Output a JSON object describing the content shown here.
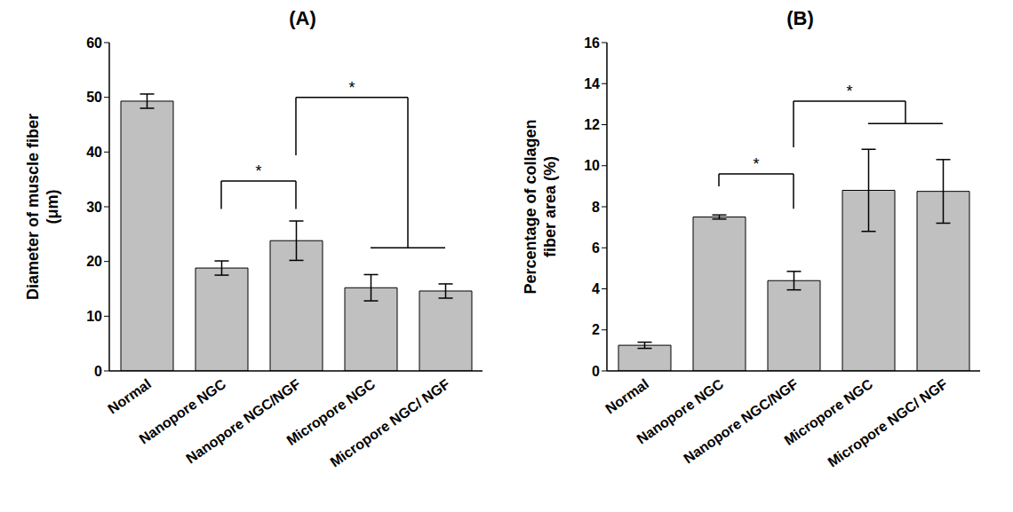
{
  "chart_data": [
    {
      "type": "bar",
      "title": "(A)",
      "y_label": [
        "Diameter of muscle fiber",
        "(μm)"
      ],
      "categories": [
        "Normal",
        "Nanopore NGC",
        "Nanopore NGC/NGF",
        "Micropore NGC",
        "Micropore NGC/ NGF"
      ],
      "values": [
        49.3,
        18.8,
        23.8,
        15.2,
        14.6
      ],
      "errors": [
        1.3,
        1.3,
        3.6,
        2.4,
        1.3
      ],
      "color": "#c0c0c0",
      "ylim": [
        0,
        60
      ],
      "yticks": [
        0,
        10,
        20,
        30,
        40,
        50,
        60
      ],
      "annotations": [
        {
          "text": "*",
          "left": [
            "Nanopore NGC"
          ],
          "right": [
            "Nanopore NGC/NGF"
          ],
          "y": 34.7,
          "left_y": 29.6,
          "right_y": 29.6
        },
        {
          "text": "*",
          "left": [
            "Nanopore NGC/NGF"
          ],
          "right": [
            "Micropore NGC",
            "Micropore NGC/ NGF"
          ],
          "y": 50,
          "left_y": 39.4,
          "right_y": 22.5
        }
      ]
    },
    {
      "type": "bar",
      "title": "(B)",
      "y_label": [
        "Percentage of collagen",
        "fiber area (%)"
      ],
      "categories": [
        "Normal",
        "Nanopore NGC",
        "Nanopore NGC/NGF",
        "Micropore NGC",
        "Micropore NGC/ NGF"
      ],
      "values": [
        1.25,
        7.5,
        4.4,
        8.8,
        8.75
      ],
      "errors": [
        0.15,
        0.1,
        0.45,
        2.0,
        1.55
      ],
      "color": "#c0c0c0",
      "ylim": [
        0,
        16
      ],
      "yticks": [
        0,
        2,
        4,
        6,
        8,
        10,
        12,
        14,
        16
      ],
      "annotations": [
        {
          "text": "*",
          "left": [
            "Nanopore NGC"
          ],
          "right": [
            "Nanopore NGC/NGF"
          ],
          "y": 9.6,
          "left_y": 9.0,
          "right_y": 7.9
        },
        {
          "text": "*",
          "left": [
            "Nanopore NGC/NGF"
          ],
          "right": [
            "Micropore NGC",
            "Micropore NGC/ NGF"
          ],
          "y": 13.15,
          "left_y": 10.9,
          "right_y": 12.05
        }
      ]
    }
  ]
}
